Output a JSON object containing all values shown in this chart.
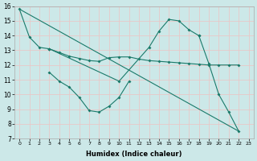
{
  "title": "",
  "xlabel": "Humidex (Indice chaleur)",
  "bg_color": "#cce8e8",
  "grid_color": "#e8c8c8",
  "line_color": "#1a7a6a",
  "xlim": [
    -0.5,
    23.5
  ],
  "ylim": [
    7,
    16
  ],
  "xticks": [
    0,
    1,
    2,
    3,
    4,
    5,
    6,
    7,
    8,
    9,
    10,
    11,
    12,
    13,
    14,
    15,
    16,
    17,
    18,
    19,
    20,
    21,
    22,
    23
  ],
  "yticks": [
    7,
    8,
    9,
    10,
    11,
    12,
    13,
    14,
    15,
    16
  ],
  "curve1_x": [
    0,
    1,
    2,
    3
  ],
  "curve1_y": [
    15.8,
    13.9,
    13.2,
    13.1
  ],
  "curve2_x": [
    3,
    4,
    5,
    6,
    7,
    8,
    9,
    10,
    11,
    12,
    13,
    14,
    15,
    16,
    17,
    18,
    19,
    20,
    21,
    22
  ],
  "curve2_y": [
    13.1,
    12.85,
    12.6,
    12.45,
    12.3,
    12.25,
    12.5,
    12.55,
    12.55,
    12.4,
    12.3,
    12.25,
    12.2,
    12.15,
    12.1,
    12.05,
    12.0,
    12.0,
    12.0,
    12.0
  ],
  "curve3_x": [
    3,
    10,
    13,
    14,
    15,
    16,
    17,
    18
  ],
  "curve3_y": [
    13.1,
    10.9,
    13.2,
    14.3,
    15.1,
    15.0,
    14.4,
    14.0
  ],
  "curve4_x": [
    3,
    4,
    5,
    6,
    7,
    8,
    9,
    10,
    11
  ],
  "curve4_y": [
    11.5,
    10.9,
    10.5,
    9.8,
    8.9,
    8.8,
    9.2,
    9.8,
    10.9
  ],
  "curve5_x": [
    18,
    19,
    20,
    21,
    22
  ],
  "curve5_y": [
    14.0,
    12.1,
    10.0,
    8.8,
    7.5
  ],
  "curve6_x": [
    0,
    22
  ],
  "curve6_y": [
    15.8,
    7.5
  ]
}
